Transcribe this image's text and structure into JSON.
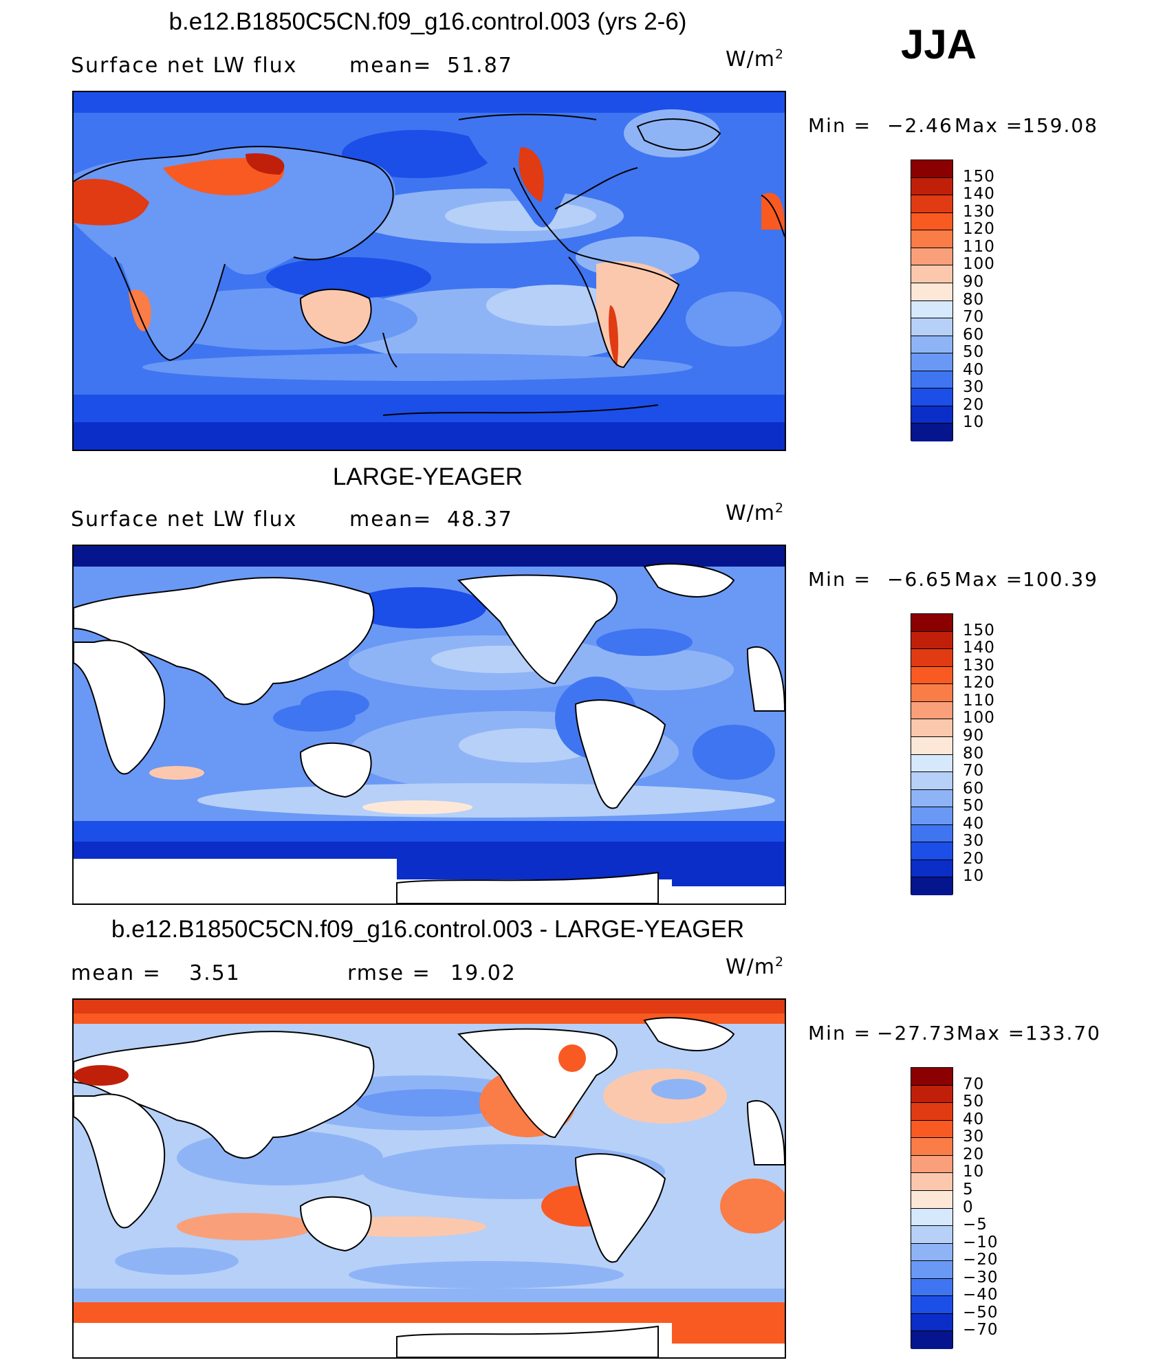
{
  "season": "JJA",
  "units_base": "W/m",
  "units_exp": "2",
  "panels": [
    {
      "title": "b.e12.B1850C5CN.f09_g16.control.003 (yrs 2-6)",
      "variable": "Surface net LW flux",
      "stat_label": "mean=",
      "stat_value": "51.87",
      "stat2_label": "",
      "stat2_value": "",
      "min_label": "Min =",
      "min_value": "−2.46",
      "max_label": "Max =",
      "max_value": "159.08",
      "map": "model"
    },
    {
      "title": "LARGE-YEAGER",
      "variable": "Surface net LW flux",
      "stat_label": "mean=",
      "stat_value": "48.37",
      "stat2_label": "",
      "stat2_value": "",
      "min_label": "Min =",
      "min_value": "−6.65",
      "max_label": "Max =",
      "max_value": "100.39",
      "map": "obs"
    },
    {
      "title": "b.e12.B1850C5CN.f09_g16.control.003 - LARGE-YEAGER",
      "variable": "",
      "stat_label": "mean =",
      "stat_value": "3.51",
      "stat2_label": "rmse =",
      "stat2_value": "19.02",
      "min_label": "Min =",
      "min_value": "−27.73",
      "max_label": "Max =",
      "max_value": "133.70",
      "map": "diff"
    }
  ],
  "colorbar_abs": {
    "labels": [
      "150",
      "140",
      "130",
      "120",
      "110",
      "100",
      "90",
      "80",
      "70",
      "60",
      "50",
      "40",
      "30",
      "20",
      "10"
    ],
    "colors": [
      "#8b0000",
      "#c0200a",
      "#e03b12",
      "#f85a22",
      "#fa7c47",
      "#f9a07a",
      "#fbc8ad",
      "#fde8d8",
      "#d6e8fb",
      "#b6d0f8",
      "#8fb4f6",
      "#6a98f5",
      "#3f75f0",
      "#1c4ee8",
      "#0b2dc8",
      "#05158e"
    ]
  },
  "colorbar_diff": {
    "labels": [
      "70",
      "50",
      "40",
      "30",
      "20",
      "10",
      "5",
      "0",
      "−5",
      "−10",
      "−20",
      "−30",
      "−40",
      "−50",
      "−70"
    ],
    "colors": [
      "#8b0000",
      "#c0200a",
      "#e03b12",
      "#f85a22",
      "#fa7c47",
      "#f9a07a",
      "#fbc8ad",
      "#fde8d8",
      "#d6e8fb",
      "#b6d0f8",
      "#8fb4f6",
      "#6a98f5",
      "#3f75f0",
      "#1c4ee8",
      "#0b2dc8",
      "#05158e"
    ]
  }
}
